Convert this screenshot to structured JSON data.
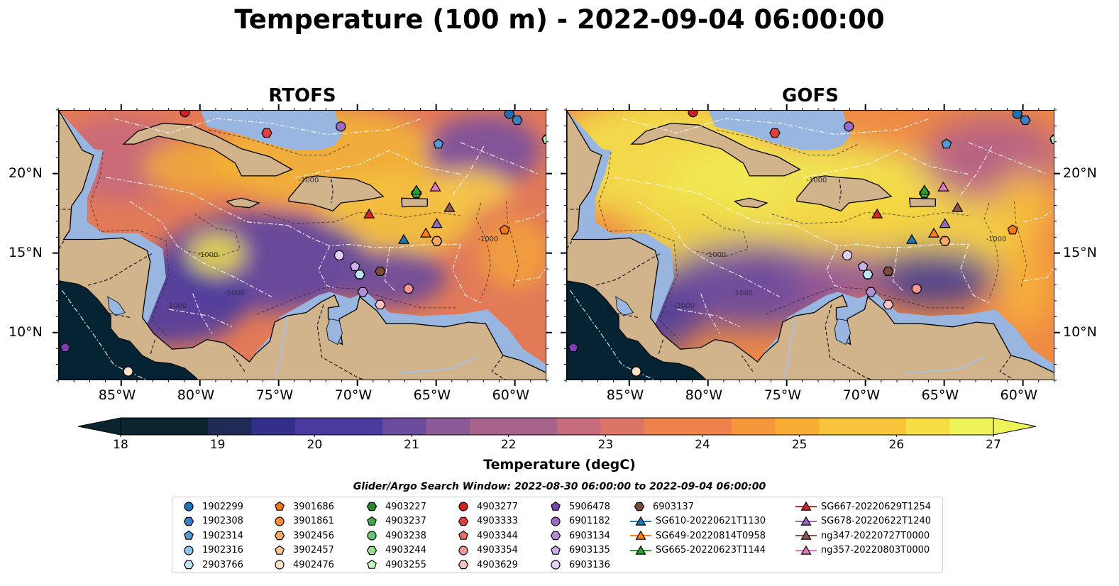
{
  "title": "Temperature (100 m) - 2022-09-04 06:00:00",
  "panels": [
    {
      "title": "RTOFS",
      "style": "rtofs"
    },
    {
      "title": "GOFS",
      "style": "gofs"
    }
  ],
  "map": {
    "lon_range": [
      -89,
      -58
    ],
    "lat_range": [
      7,
      24
    ],
    "lon_ticks": [
      {
        "value": -85,
        "label": "85°W"
      },
      {
        "value": -80,
        "label": "80°W"
      },
      {
        "value": -75,
        "label": "75°W"
      },
      {
        "value": -70,
        "label": "70°W"
      },
      {
        "value": -65,
        "label": "65°W"
      },
      {
        "value": -60,
        "label": "60°W"
      }
    ],
    "lat_ticks": [
      {
        "value": 10,
        "label": "10°N"
      },
      {
        "value": 15,
        "label": "15°N"
      },
      {
        "value": 20,
        "label": "20°N"
      }
    ],
    "contour_label": "-1000",
    "colors": {
      "land": "#d2b48c",
      "shelf": "#98b6df",
      "deep": "#062333",
      "border": "#000000"
    }
  },
  "colorbar": {
    "ticks": [
      "18",
      "19",
      "20",
      "21",
      "22",
      "23",
      "24",
      "25",
      "26",
      "27"
    ],
    "label": "Temperature (degC)",
    "range": [
      18,
      27
    ],
    "colors": [
      "#0b2530",
      "#1f2a55",
      "#332e8a",
      "#4a3a9e",
      "#6b4b9c",
      "#8a5a96",
      "#a8638c",
      "#c56b7c",
      "#dd7468",
      "#ee824d",
      "#f6963b",
      "#f8ad34",
      "#f8c53a",
      "#f6de44",
      "#eef35a"
    ]
  },
  "search_window": "Glider/Argo Search Window: 2022-08-30 06:00:00 to 2022-09-04 06:00:00",
  "legend": [
    {
      "label": "1902299",
      "marker": "circle",
      "color": "#1f6fb4",
      "lon": -60.4,
      "lat": 23.8
    },
    {
      "label": "1902308",
      "marker": "hexagon",
      "color": "#3a80c0",
      "lon": -59.9,
      "lat": 23.4
    },
    {
      "label": "1902314",
      "marker": "pentagon",
      "color": "#5599d6",
      "lon": -64.9,
      "lat": 21.9
    },
    {
      "label": "1902316",
      "marker": "circle",
      "color": "#8cc4ea",
      "lon": -69.9,
      "lat": 13.7
    },
    {
      "label": "2903766",
      "marker": "hexagon",
      "color": "#bfe3f7",
      "lon": -69.9,
      "lat": 13.7
    },
    {
      "label": "3901686",
      "marker": "pentagon",
      "color": "#f07818",
      "lon": -60.7,
      "lat": 16.5
    },
    {
      "label": "3901861",
      "marker": "circle",
      "color": "#f58d3c",
      "lon": -65.0,
      "lat": 15.8
    },
    {
      "label": "3902456",
      "marker": "hexagon",
      "color": "#f8a866",
      "lon": -65.0,
      "lat": 15.8
    },
    {
      "label": "3902457",
      "marker": "pentagon",
      "color": "#fbc895",
      "lon": -58.0,
      "lat": 22.2
    },
    {
      "label": "4902476",
      "marker": "circle",
      "color": "#fde2c5",
      "lon": -84.6,
      "lat": 7.6
    },
    {
      "label": "4903227",
      "marker": "hexagon",
      "color": "#1e8a2a",
      "lon": -66.3,
      "lat": 18.8
    },
    {
      "label": "4903237",
      "marker": "pentagon",
      "color": "#3fa84c",
      "lon": -66.3,
      "lat": 18.8
    },
    {
      "label": "4903238",
      "marker": "circle",
      "color": "#69c46f",
      "lon": -58.0,
      "lat": 22.2
    },
    {
      "label": "4903244",
      "marker": "hexagon",
      "color": "#92dd8e",
      "lon": -58.0,
      "lat": 22.2
    },
    {
      "label": "4903255",
      "marker": "pentagon",
      "color": "#c5f2bd",
      "lon": -58.0,
      "lat": 22.2
    },
    {
      "label": "4903277",
      "marker": "circle",
      "color": "#d02020",
      "lon": -81.0,
      "lat": 23.9
    },
    {
      "label": "4903333",
      "marker": "hexagon",
      "color": "#e04040",
      "lon": -75.8,
      "lat": 22.6
    },
    {
      "label": "4903344",
      "marker": "pentagon",
      "color": "#ea6a6a",
      "lon": -66.8,
      "lat": 12.8
    },
    {
      "label": "4903354",
      "marker": "circle",
      "color": "#f29696",
      "lon": -66.8,
      "lat": 12.8
    },
    {
      "label": "4903629",
      "marker": "hexagon",
      "color": "#f8c1c1",
      "lon": -68.6,
      "lat": 11.8
    },
    {
      "label": "5906478",
      "marker": "pentagon",
      "color": "#7b3fb0",
      "lon": -88.6,
      "lat": 9.1
    },
    {
      "label": "6901182",
      "marker": "circle",
      "color": "#9b6ac4",
      "lon": -71.1,
      "lat": 23.0
    },
    {
      "label": "6903134",
      "marker": "hexagon",
      "color": "#b38ed6",
      "lon": -69.7,
      "lat": 12.6
    },
    {
      "label": "6903135",
      "marker": "pentagon",
      "color": "#ccb1e8",
      "lon": -70.2,
      "lat": 14.2
    },
    {
      "label": "6903136",
      "marker": "circle",
      "color": "#e3d2f5",
      "lon": -71.2,
      "lat": 14.9
    },
    {
      "label": "6903137",
      "marker": "hexagon",
      "color": "#7a4a3a",
      "lon": -68.6,
      "lat": 13.9
    },
    {
      "label": "SG610-20220621T1130",
      "marker": "triangle",
      "color": "#1f77b4",
      "line": true,
      "lon": -67.1,
      "lat": 15.9
    },
    {
      "label": "SG649-20220814T0958",
      "marker": "triangle",
      "color": "#ff7f0e",
      "line": true,
      "lon": -65.7,
      "lat": 16.3
    },
    {
      "label": "SG665-20220623T1144",
      "marker": "triangle",
      "color": "#2ca02c",
      "line": true,
      "lon": -66.3,
      "lat": 19.0
    },
    {
      "label": "SG667-20220629T1254",
      "marker": "triangle",
      "color": "#d62728",
      "line": true,
      "lon": -69.3,
      "lat": 17.5
    },
    {
      "label": "SG678-20220622T1240",
      "marker": "triangle",
      "color": "#9467bd",
      "line": true,
      "lon": -65.0,
      "lat": 16.9
    },
    {
      "label": "ng347-20220727T0000",
      "marker": "triangle",
      "color": "#8c564b",
      "line": true,
      "lon": -64.2,
      "lat": 17.9
    },
    {
      "label": "ng357-20220803T0000",
      "marker": "triangle",
      "color": "#e377c2",
      "line": true,
      "lon": -65.1,
      "lat": 19.2
    }
  ]
}
